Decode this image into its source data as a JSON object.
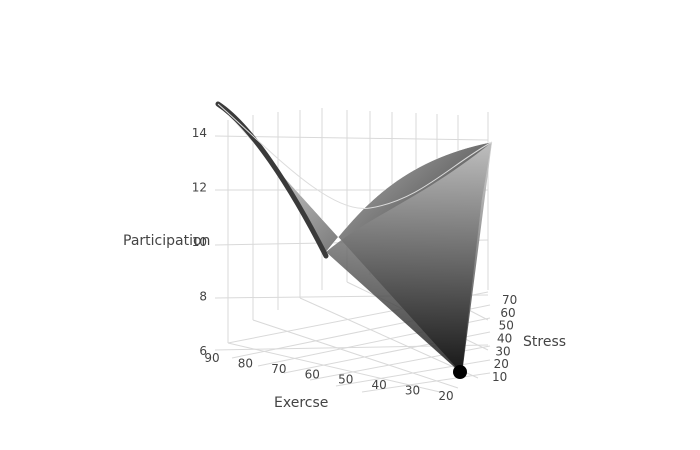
{
  "chart_data": {
    "type": "surface",
    "title": "",
    "axes": {
      "x": {
        "label": "Exercse",
        "range": [
          20,
          90
        ],
        "ticks": [
          90,
          80,
          70,
          60,
          50,
          40,
          30,
          20
        ]
      },
      "y": {
        "label": "Stress",
        "range": [
          10,
          70
        ],
        "ticks": [
          10,
          20,
          30,
          40,
          50,
          60,
          70
        ]
      },
      "z": {
        "label": "Participation",
        "range": [
          6,
          15
        ],
        "ticks": [
          6,
          8,
          10,
          12,
          14
        ]
      }
    },
    "corners": [
      {
        "exercise": 90,
        "stress": 10,
        "participation": 14.8
      },
      {
        "exercise": 20,
        "stress": 70,
        "participation": 13.4
      },
      {
        "exercise": 20,
        "stress": 10,
        "participation": 6.1
      },
      {
        "exercise": 90,
        "stress": 70,
        "participation": 9.4
      }
    ],
    "colorscale": [
      "#000000",
      "#ffffff"
    ],
    "grid": true,
    "legend": "none"
  }
}
